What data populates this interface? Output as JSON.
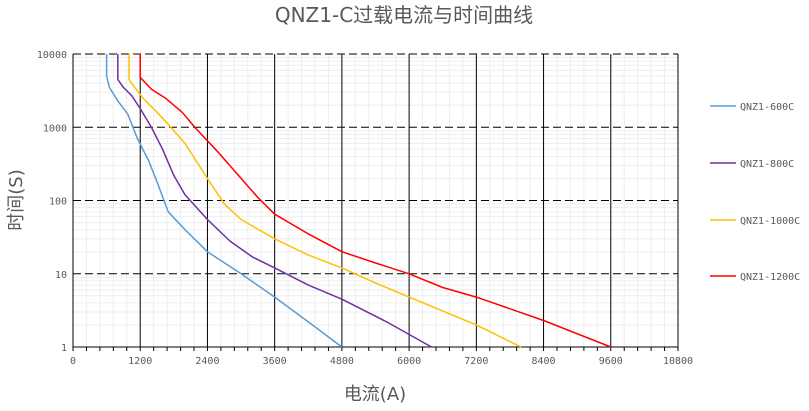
{
  "chart_data": {
    "type": "line",
    "title": "QNZ1-C过载电流与时间曲线",
    "xlabel": "电流(A)",
    "ylabel": "时间(S)",
    "xlim": [
      0,
      10800
    ],
    "ylim": [
      1,
      10000
    ],
    "y_scale": "log",
    "x_ticks": [
      "0",
      "1200",
      "2400",
      "3600",
      "4800",
      "6000",
      "7200",
      "8400",
      "9600",
      "10800"
    ],
    "y_ticks": [
      "1",
      "10",
      "100",
      "1000",
      "10000"
    ],
    "grid": true,
    "legend_position": "right",
    "series": [
      {
        "name": "QNZ1-600C",
        "color": "#5B9BD5",
        "points": [
          [
            600,
            10000
          ],
          [
            600,
            5000
          ],
          [
            650,
            3500
          ],
          [
            800,
            2300
          ],
          [
            980,
            1500
          ],
          [
            1150,
            700
          ],
          [
            1350,
            350
          ],
          [
            1500,
            180
          ],
          [
            1700,
            70
          ],
          [
            2000,
            40
          ],
          [
            2400,
            20
          ],
          [
            3000,
            10
          ],
          [
            3600,
            4.8
          ],
          [
            4200,
            2.2
          ],
          [
            4800,
            1
          ]
        ]
      },
      {
        "name": "QNZ1-800C",
        "color": "#7030A0",
        "points": [
          [
            800,
            10000
          ],
          [
            800,
            4500
          ],
          [
            900,
            3500
          ],
          [
            1050,
            2700
          ],
          [
            1200,
            1800
          ],
          [
            1400,
            1000
          ],
          [
            1600,
            500
          ],
          [
            1800,
            220
          ],
          [
            2000,
            120
          ],
          [
            2400,
            55
          ],
          [
            2800,
            28
          ],
          [
            3200,
            17
          ],
          [
            3600,
            12
          ],
          [
            4200,
            7
          ],
          [
            4800,
            4.5
          ],
          [
            5600,
            2.2
          ],
          [
            6400,
            1
          ]
        ]
      },
      {
        "name": "QNZ1-1000C",
        "color": "#FFC000",
        "points": [
          [
            1000,
            10000
          ],
          [
            1000,
            4500
          ],
          [
            1100,
            3500
          ],
          [
            1250,
            2500
          ],
          [
            1500,
            1600
          ],
          [
            1700,
            1100
          ],
          [
            2000,
            600
          ],
          [
            2400,
            200
          ],
          [
            2700,
            90
          ],
          [
            3000,
            55
          ],
          [
            3600,
            30
          ],
          [
            4200,
            18
          ],
          [
            4800,
            12
          ],
          [
            5400,
            7.5
          ],
          [
            6000,
            4.8
          ],
          [
            7200,
            2
          ],
          [
            8000,
            1
          ]
        ]
      },
      {
        "name": "QNZ1-1200C",
        "color": "#FF0000",
        "points": [
          [
            1200,
            10000
          ],
          [
            1200,
            4800
          ],
          [
            1400,
            3300
          ],
          [
            1650,
            2500
          ],
          [
            1950,
            1600
          ],
          [
            2200,
            950
          ],
          [
            2600,
            450
          ],
          [
            3000,
            200
          ],
          [
            3300,
            110
          ],
          [
            3600,
            65
          ],
          [
            4200,
            35
          ],
          [
            4800,
            20
          ],
          [
            5400,
            14
          ],
          [
            6000,
            10
          ],
          [
            6600,
            6.5
          ],
          [
            7200,
            4.8
          ],
          [
            8400,
            2.3
          ],
          [
            9600,
            1
          ]
        ]
      }
    ]
  }
}
